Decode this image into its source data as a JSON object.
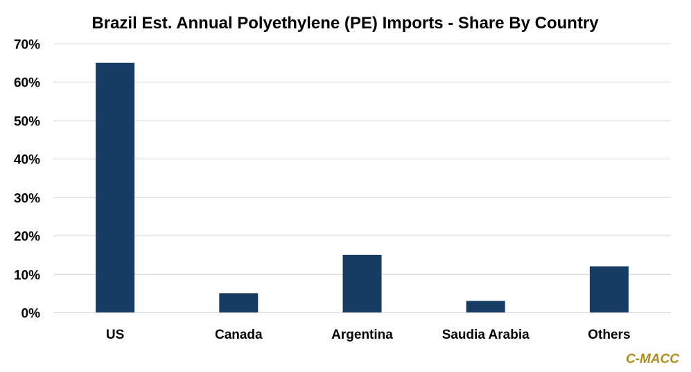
{
  "chart_data": {
    "type": "bar",
    "title": "Brazil Est. Annual Polyethylene (PE) Imports - Share By Country",
    "xlabel": "",
    "ylabel": "",
    "categories": [
      "US",
      "Canada",
      "Argentina",
      "Saudia Arabia",
      "Others"
    ],
    "values": [
      0.65,
      0.05,
      0.15,
      0.03,
      0.12
    ],
    "ylim": [
      0,
      0.7
    ],
    "yticks": [
      0,
      0.1,
      0.2,
      0.3,
      0.4,
      0.5,
      0.6,
      0.7
    ],
    "ytick_labels": [
      "0%",
      "10%",
      "20%",
      "30%",
      "40%",
      "50%",
      "60%",
      "70%"
    ],
    "grid": true,
    "legend": "none",
    "bar_color": "#173c63"
  },
  "watermark": {
    "text": "C-MACC",
    "color": "#b08d1a"
  }
}
